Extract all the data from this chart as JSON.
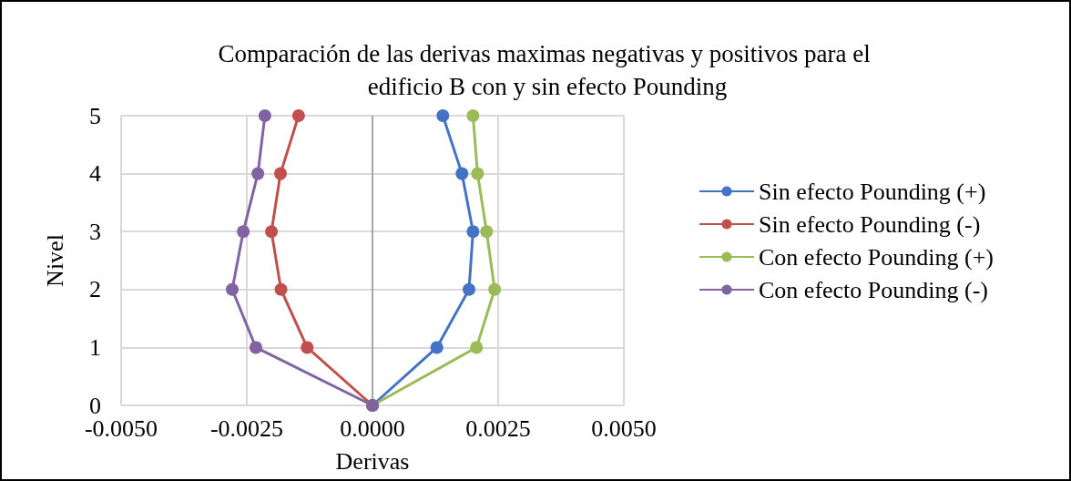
{
  "chart_data": {
    "type": "line",
    "title": "Comparación de las derivas maximas negativas y positivos para el edificio B con y sin efecto Pounding",
    "xlabel": "Derivas",
    "ylabel": "Nivel",
    "xlim": [
      -0.005,
      0.005
    ],
    "xticks": [
      {
        "value": -0.005,
        "label": "-0.0050"
      },
      {
        "value": -0.0025,
        "label": "-0.0025"
      },
      {
        "value": 0,
        "label": "0.0000"
      },
      {
        "value": 0.0025,
        "label": "0.0025"
      },
      {
        "value": 0.005,
        "label": "0.0050"
      }
    ],
    "ylim": [
      0,
      5
    ],
    "yticks": [
      0,
      1,
      2,
      3,
      4,
      5
    ],
    "grid": true,
    "legend": "right",
    "marker": "circle",
    "line_style": "solid",
    "series": [
      {
        "name": "Sin efecto Pounding (+)",
        "color": "#4472c4",
        "x": [
          0,
          0.00128,
          0.00192,
          0.002,
          0.00178,
          0.0014
        ],
        "values": [
          0,
          1,
          2,
          3,
          4,
          5
        ]
      },
      {
        "name": "Sin efecto Pounding (-)",
        "color": "#c0504d",
        "x": [
          0,
          -0.0013,
          -0.00182,
          -0.00201,
          -0.00183,
          -0.00147
        ],
        "values": [
          0,
          1,
          2,
          3,
          4,
          5
        ]
      },
      {
        "name": "Con efecto Pounding (+)",
        "color": "#9bbb59",
        "x": [
          0,
          0.00207,
          0.00243,
          0.00227,
          0.00209,
          0.002
        ],
        "values": [
          0,
          1,
          2,
          3,
          4,
          5
        ]
      },
      {
        "name": "Con efecto Pounding (-)",
        "color": "#8064a2",
        "x": [
          0,
          -0.00232,
          -0.00279,
          -0.00257,
          -0.00228,
          -0.00214
        ],
        "values": [
          0,
          1,
          2,
          3,
          4,
          5
        ]
      }
    ]
  }
}
